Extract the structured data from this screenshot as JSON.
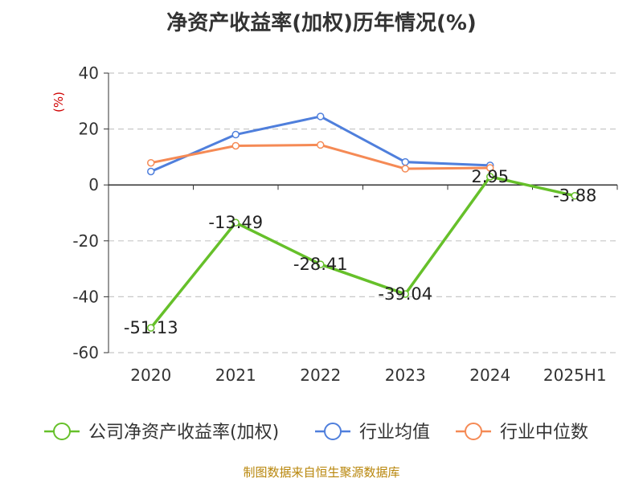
{
  "title": "净资产收益率(加权)历年情况(%)",
  "source": "制图数据来自恒生聚源数据库",
  "chart_data": {
    "type": "line",
    "ylabel": "(%)",
    "ylim": [
      -60,
      40
    ],
    "yticks": [
      40,
      20,
      0,
      -20,
      -40,
      -60
    ],
    "categories": [
      "2020",
      "2021",
      "2022",
      "2023",
      "2024",
      "2025H1"
    ],
    "grid": true,
    "legend_position": "bottom",
    "series": [
      {
        "name": "公司净资产收益率(加权)",
        "color": "#66c02a",
        "values": [
          -51.13,
          -13.49,
          -28.41,
          -39.04,
          2.95,
          -3.88
        ],
        "labels": [
          "-51.13",
          "-13.49",
          "-28.41",
          "-39.04",
          "2.95",
          "-3.88"
        ]
      },
      {
        "name": "行业均值",
        "color": "#4f7fdc",
        "values": [
          4.8,
          18.0,
          24.5,
          8.2,
          7.0,
          null
        ]
      },
      {
        "name": "行业中位数",
        "color": "#f58a55",
        "values": [
          7.9,
          14.0,
          14.3,
          5.8,
          6.1,
          null
        ]
      }
    ]
  }
}
